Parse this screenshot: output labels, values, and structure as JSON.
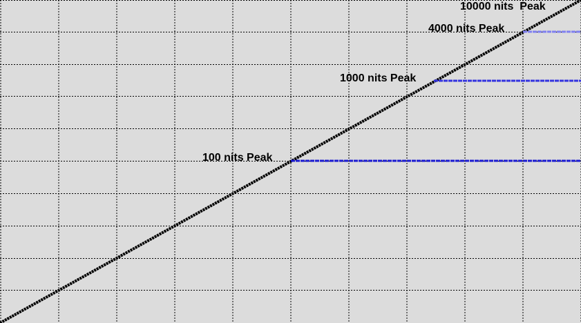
{
  "chart_data": {
    "type": "line",
    "title": "",
    "xlabel": "",
    "ylabel": "",
    "xlim": [
      0,
      10000
    ],
    "ylim": [
      0,
      10000
    ],
    "grid": true,
    "series": [
      {
        "x": [
          0,
          10000
        ],
        "y": [
          0,
          10000
        ],
        "color": "#000000"
      },
      {
        "x": [
          2500,
          10000
        ],
        "y": [
          5000,
          5000
        ],
        "color": "#1a1ad2"
      },
      {
        "x": [
          3730,
          10000
        ],
        "y": [
          7500,
          7500
        ],
        "color": "#3333e0"
      },
      {
        "x": [
          4500,
          10000
        ],
        "y": [
          9000,
          9000
        ],
        "color": "#8080f0"
      }
    ],
    "annotations": [
      {
        "text": "100 nits Peak",
        "x": 2500,
        "y": 5000
      },
      {
        "text": "1000 nits Peak",
        "x": 3730,
        "y": 7500
      },
      {
        "text": "4000 nits Peak",
        "x": 4500,
        "y": 9000
      },
      {
        "text": "10000 nits  Peak",
        "x": 5000,
        "y": 9950
      }
    ]
  }
}
